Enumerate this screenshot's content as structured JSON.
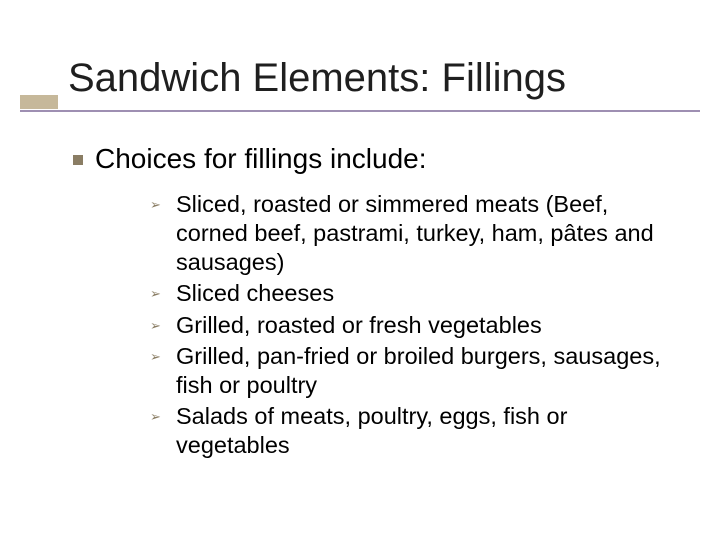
{
  "colors": {
    "accent_bar": "#c6b89a",
    "underline": "#9e8fb2",
    "bullet": "#8a7d64",
    "text": "#000000",
    "background": "#ffffff"
  },
  "typography": {
    "title_fontsize": 40,
    "level1_fontsize": 28,
    "level2_fontsize": 23.5,
    "font_family": "Verdana"
  },
  "title": "Sandwich Elements: Fillings",
  "level1": {
    "text": "Choices for fillings include:"
  },
  "level2_items": [
    "Sliced, roasted or simmered meats (Beef, corned beef, pastrami, turkey, ham, pâtes and sausages)",
    "Sliced cheeses",
    "Grilled, roasted or fresh vegetables",
    "Grilled, pan-fried or broiled burgers, sausages, fish or poultry",
    "Salads of meats, poultry, eggs, fish or vegetables"
  ]
}
